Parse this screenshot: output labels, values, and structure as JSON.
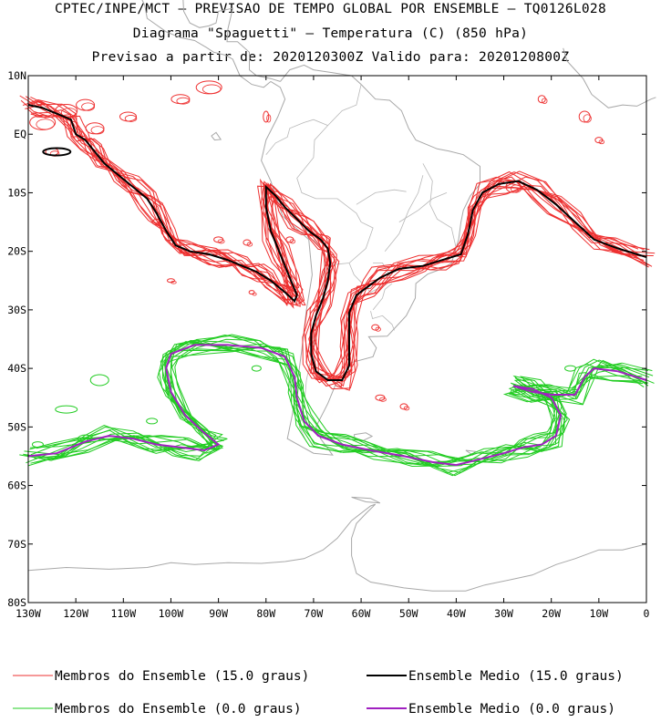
{
  "header": {
    "line1": "CPTEC/INPE/MCT — PREVISAO DE TEMPO GLOBAL POR ENSEMBLE — TQ0126L028",
    "line2": "Diagrama \"Spaguetti\" — Temperatura (C) (850 hPa)",
    "line3": "Previsao a partir de: 2020120300Z  Valido para: 2020120800Z"
  },
  "colors": {
    "member_15": "#ee3030",
    "mean_15": "#000000",
    "member_0": "#22cc22",
    "mean_0": "#a020c0",
    "coast": "#a8a8a8",
    "border": "#b8b8b8"
  },
  "chart_data": {
    "type": "line",
    "title": "Diagrama \"Spaguetti\" — Temperatura (C) (850 hPa)",
    "xlabel": "",
    "ylabel": "",
    "xlim": [
      -130,
      0
    ],
    "ylim": [
      -80,
      10
    ],
    "x_ticks": [
      {
        "value": -130,
        "label": "130W"
      },
      {
        "value": -120,
        "label": "120W"
      },
      {
        "value": -110,
        "label": "110W"
      },
      {
        "value": -100,
        "label": "100W"
      },
      {
        "value": -90,
        "label": "90W"
      },
      {
        "value": -80,
        "label": "80W"
      },
      {
        "value": -70,
        "label": "70W"
      },
      {
        "value": -60,
        "label": "60W"
      },
      {
        "value": -50,
        "label": "50W"
      },
      {
        "value": -40,
        "label": "40W"
      },
      {
        "value": -30,
        "label": "30W"
      },
      {
        "value": -20,
        "label": "20W"
      },
      {
        "value": -10,
        "label": "10W"
      },
      {
        "value": 0,
        "label": "0"
      }
    ],
    "y_ticks": [
      {
        "value": 10,
        "label": "10N"
      },
      {
        "value": 0,
        "label": "EQ"
      },
      {
        "value": -10,
        "label": "10S"
      },
      {
        "value": -20,
        "label": "20S"
      },
      {
        "value": -30,
        "label": "30S"
      },
      {
        "value": -40,
        "label": "40S"
      },
      {
        "value": -50,
        "label": "50S"
      },
      {
        "value": -60,
        "label": "60S"
      },
      {
        "value": -70,
        "label": "70S"
      },
      {
        "value": -80,
        "label": "80S"
      }
    ],
    "legend": {
      "placement": "bottom",
      "entries": [
        {
          "label": "Membros do Ensemble (15.0 graus)",
          "color": "#ee3030",
          "width": 1
        },
        {
          "label": "Ensemble Medio (15.0 graus)",
          "color": "#000000",
          "width": 2
        },
        {
          "label": "Membros do Ensemble (0.0 graus)",
          "color": "#22cc22",
          "width": 1
        },
        {
          "label": "Ensemble Medio (0.0 graus)",
          "color": "#a020c0",
          "width": 2
        }
      ]
    },
    "series": [
      {
        "name": "Ensemble Medio (15.0 graus)",
        "points": [
          [
            -130,
            5
          ],
          [
            -127,
            4.5
          ],
          [
            -124,
            3.5
          ],
          [
            -121,
            2.5
          ],
          [
            -120,
            0
          ],
          [
            -118,
            -1
          ],
          [
            -116,
            -3
          ],
          [
            -114,
            -5
          ],
          [
            -111,
            -7
          ],
          [
            -108,
            -9
          ],
          [
            -105,
            -11
          ],
          [
            -103,
            -13.5
          ],
          [
            -101,
            -16.5
          ],
          [
            -99,
            -19
          ],
          [
            -96,
            -20
          ],
          [
            -92,
            -20.5
          ],
          [
            -88,
            -21.5
          ],
          [
            -85,
            -22.5
          ],
          [
            -82,
            -23.5
          ],
          [
            -79,
            -25
          ],
          [
            -76,
            -27
          ],
          [
            -74,
            -28.5
          ],
          [
            -73.5,
            -27.5
          ],
          [
            -75,
            -24.5
          ],
          [
            -77,
            -20.5
          ],
          [
            -79,
            -16.5
          ],
          [
            -80,
            -12.5
          ],
          [
            -80,
            -9
          ],
          [
            -78,
            -10.5
          ],
          [
            -76,
            -12.5
          ],
          [
            -73.5,
            -14.5
          ],
          [
            -71,
            -16.5
          ],
          [
            -68.5,
            -18
          ],
          [
            -67,
            -19.5
          ],
          [
            -66.5,
            -22
          ],
          [
            -67,
            -25
          ],
          [
            -68,
            -28
          ],
          [
            -69.5,
            -31
          ],
          [
            -70.5,
            -34
          ],
          [
            -70.5,
            -37.5
          ],
          [
            -69.5,
            -40.5
          ],
          [
            -67,
            -42
          ],
          [
            -64,
            -42
          ],
          [
            -62.5,
            -39.5
          ],
          [
            -62.5,
            -35
          ],
          [
            -62.5,
            -30.5
          ],
          [
            -61,
            -27.5
          ],
          [
            -58.5,
            -26
          ],
          [
            -56,
            -24.5
          ],
          [
            -52,
            -23
          ],
          [
            -47,
            -22.5
          ],
          [
            -43,
            -21.5
          ],
          [
            -39,
            -20.5
          ],
          [
            -37.5,
            -17
          ],
          [
            -36.5,
            -13
          ],
          [
            -34.5,
            -10
          ],
          [
            -31,
            -8.5
          ],
          [
            -27,
            -8
          ],
          [
            -23,
            -9.5
          ],
          [
            -19,
            -12
          ],
          [
            -15,
            -15
          ],
          [
            -11,
            -18
          ],
          [
            -6,
            -19.5
          ],
          [
            0,
            -21
          ]
        ]
      },
      {
        "name": "Ensemble Medio (0.0 graus)",
        "points": [
          [
            -130,
            -55
          ],
          [
            -124,
            -54.5
          ],
          [
            -118,
            -52.5
          ],
          [
            -113,
            -51.5
          ],
          [
            -108,
            -52
          ],
          [
            -103,
            -53
          ],
          [
            -98,
            -53.5
          ],
          [
            -93,
            -54
          ],
          [
            -90,
            -53
          ],
          [
            -93,
            -51
          ],
          [
            -97,
            -48
          ],
          [
            -100,
            -44
          ],
          [
            -101,
            -40
          ],
          [
            -100,
            -37.5
          ],
          [
            -95,
            -36
          ],
          [
            -88,
            -36
          ],
          [
            -81,
            -36.5
          ],
          [
            -76,
            -38
          ],
          [
            -74,
            -41.5
          ],
          [
            -73.5,
            -45
          ],
          [
            -72,
            -49
          ],
          [
            -69,
            -51.5
          ],
          [
            -64,
            -53
          ],
          [
            -58,
            -54
          ],
          [
            -51,
            -55
          ],
          [
            -45,
            -56
          ],
          [
            -40,
            -56.5
          ],
          [
            -35,
            -55.5
          ],
          [
            -30,
            -54.5
          ],
          [
            -26,
            -53.5
          ],
          [
            -22,
            -53
          ],
          [
            -19,
            -51.5
          ],
          [
            -18,
            -48
          ],
          [
            -20,
            -45
          ],
          [
            -24,
            -43.5
          ],
          [
            -28,
            -43
          ],
          [
            -24,
            -44
          ],
          [
            -20,
            -44.5
          ],
          [
            -15,
            -44.5
          ],
          [
            -13,
            -41.5
          ],
          [
            -11,
            -40
          ],
          [
            -6,
            -40.5
          ],
          [
            0,
            -42
          ]
        ]
      }
    ]
  }
}
